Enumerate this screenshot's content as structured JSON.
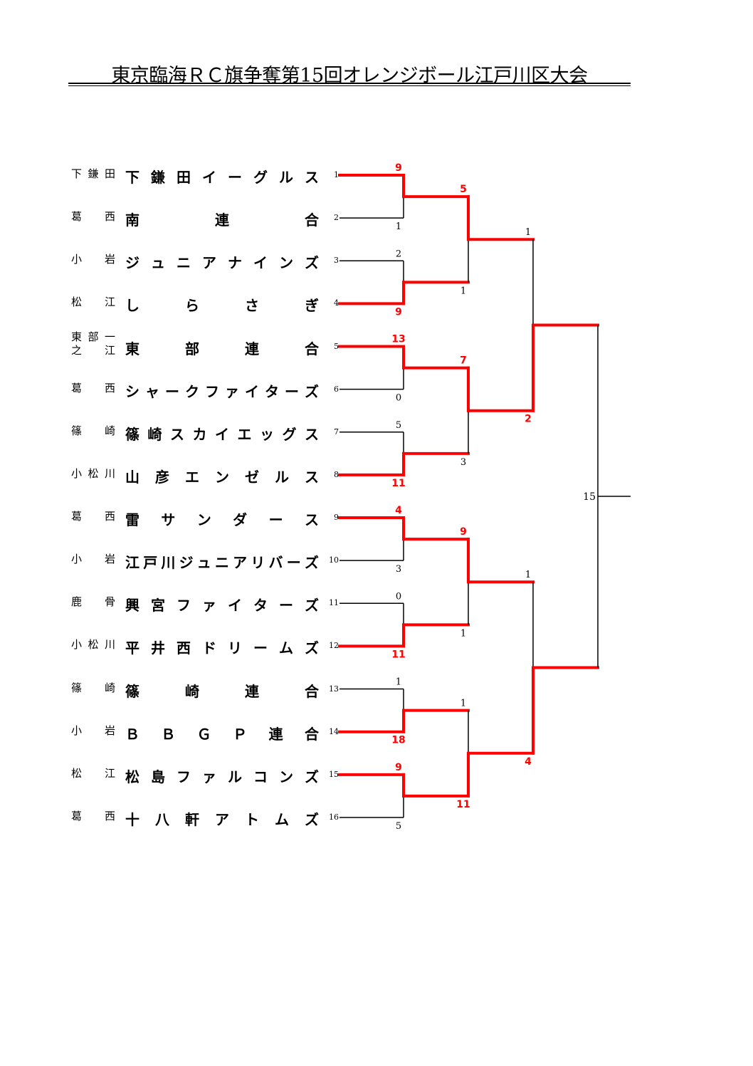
{
  "title": "東京臨海ＲＣ旗争奪第15回オレンジボール江戸川区大会",
  "colors": {
    "winner": "#ff0000",
    "line": "#000000"
  },
  "teams": [
    {
      "seed": "1",
      "area": [
        "下鎌田"
      ],
      "name": "下鎌田イーグルス"
    },
    {
      "seed": "2",
      "area": [
        "葛西"
      ],
      "name": "南連合"
    },
    {
      "seed": "3",
      "area": [
        "小岩"
      ],
      "name": "ジュニアナインズ"
    },
    {
      "seed": "4",
      "area": [
        "松江"
      ],
      "name": "しらさぎ"
    },
    {
      "seed": "5",
      "area": [
        "東部一",
        "之江"
      ],
      "name": "東部連合"
    },
    {
      "seed": "6",
      "area": [
        "葛西"
      ],
      "name": "シャークファイターズ"
    },
    {
      "seed": "7",
      "area": [
        "篠崎"
      ],
      "name": "篠崎スカイエッグス"
    },
    {
      "seed": "8",
      "area": [
        "小松川"
      ],
      "name": "山彦エンゼルス"
    },
    {
      "seed": "9",
      "area": [
        "葛西"
      ],
      "name": "雷サンダース"
    },
    {
      "seed": "10",
      "area": [
        "小岩"
      ],
      "name": "江戸川ジュニアリバーズ"
    },
    {
      "seed": "11",
      "area": [
        "鹿骨"
      ],
      "name": "興宮ファイターズ"
    },
    {
      "seed": "12",
      "area": [
        "小松川"
      ],
      "name": "平井西ドリームズ"
    },
    {
      "seed": "13",
      "area": [
        "篠崎"
      ],
      "name": "篠崎連合"
    },
    {
      "seed": "14",
      "area": [
        "小岩"
      ],
      "name": "ＢＢＧＰ連合"
    },
    {
      "seed": "15",
      "area": [
        "松江"
      ],
      "name": "松島ファルコンズ"
    },
    {
      "seed": "16",
      "area": [
        "葛西"
      ],
      "name": "十八軒アトムズ"
    }
  ],
  "rounds": [
    [
      {
        "top": "9",
        "bottom": "1",
        "winner": "top"
      },
      {
        "top": "2",
        "bottom": "9",
        "winner": "bottom"
      },
      {
        "top": "13",
        "bottom": "0",
        "winner": "top"
      },
      {
        "top": "5",
        "bottom": "11",
        "winner": "bottom"
      },
      {
        "top": "4",
        "bottom": "3",
        "winner": "top"
      },
      {
        "top": "0",
        "bottom": "11",
        "winner": "bottom"
      },
      {
        "top": "1",
        "bottom": "18",
        "winner": "bottom"
      },
      {
        "top": "9",
        "bottom": "5",
        "winner": "top"
      }
    ],
    [
      {
        "top": "5",
        "bottom": "1",
        "winner": "top"
      },
      {
        "top": "7",
        "bottom": "3",
        "winner": "top"
      },
      {
        "top": "9",
        "bottom": "1",
        "winner": "top"
      },
      {
        "top": "1",
        "bottom": "11",
        "winner": "bottom"
      }
    ],
    [
      {
        "top": "1",
        "bottom": "2",
        "winner": "bottom"
      },
      {
        "top": "1",
        "bottom": "4",
        "winner": "bottom"
      }
    ]
  ],
  "final": {
    "label": "15"
  }
}
